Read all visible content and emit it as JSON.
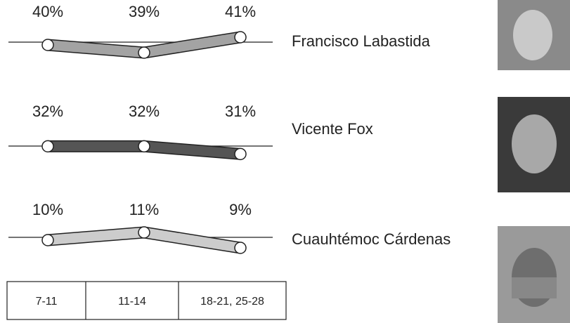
{
  "chart_data": [
    {
      "type": "line",
      "categories": [
        "7-11",
        "11-14",
        "18-21, 25-28"
      ],
      "series": [
        {
          "name": "Francisco Labastida",
          "color": "#a3a3a3",
          "values": [
            40,
            39,
            41
          ],
          "value_labels": [
            "40%",
            "39%",
            "41%"
          ]
        }
      ]
    },
    {
      "type": "line",
      "categories": [
        "7-11",
        "11-14",
        "18-21, 25-28"
      ],
      "series": [
        {
          "name": "Vicente Fox",
          "color": "#555555",
          "values": [
            32,
            32,
            31
          ],
          "value_labels": [
            "32%",
            "32%",
            "31%"
          ]
        }
      ]
    },
    {
      "type": "line",
      "categories": [
        "7-11",
        "11-14",
        "18-21, 25-28"
      ],
      "series": [
        {
          "name": "Cuauhtémoc Cárdenas",
          "color": "#cccccc",
          "values": [
            10,
            11,
            9
          ],
          "value_labels": [
            "10%",
            "11%",
            "9%"
          ]
        }
      ]
    }
  ]
}
